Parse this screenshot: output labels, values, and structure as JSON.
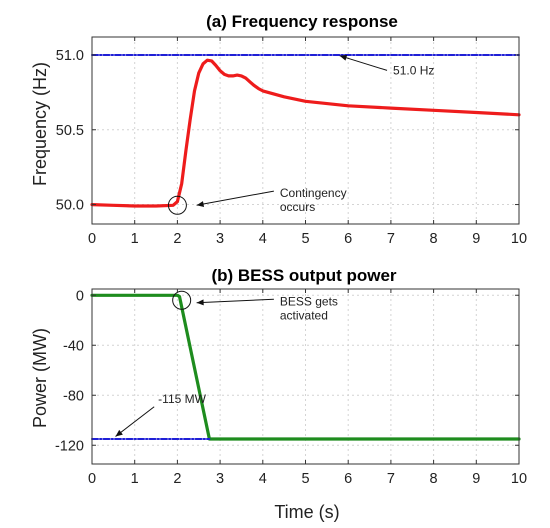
{
  "chart_data": [
    {
      "type": "line",
      "title": "(a) Frequency response",
      "xlabel": "",
      "ylabel": "Frequency (Hz)",
      "xlim": [
        0,
        10
      ],
      "ylim": [
        49.87,
        51.12
      ],
      "xticks": [
        0,
        1,
        2,
        3,
        4,
        5,
        6,
        7,
        8,
        9,
        10
      ],
      "yticks": [
        50.0,
        50.5,
        51.0
      ],
      "ytick_labels": [
        "50.0",
        "50.5",
        "51.0"
      ],
      "grid": true,
      "series": [
        {
          "name": "",
          "color": "#ee1c1c",
          "style": "solid",
          "x": [
            0,
            0.5,
            1.0,
            1.5,
            1.9,
            2.0,
            2.1,
            2.2,
            2.3,
            2.4,
            2.5,
            2.6,
            2.7,
            2.8,
            2.9,
            3.0,
            3.1,
            3.2,
            3.3,
            3.4,
            3.5,
            3.6,
            3.7,
            3.8,
            3.9,
            4.0,
            4.5,
            5.0,
            6.0,
            7.0,
            8.0,
            9.0,
            10.0
          ],
          "y": [
            50.0,
            49.995,
            49.99,
            49.99,
            49.995,
            50.02,
            50.14,
            50.36,
            50.57,
            50.76,
            50.88,
            50.94,
            50.965,
            50.96,
            50.93,
            50.895,
            50.87,
            50.86,
            50.86,
            50.865,
            50.86,
            50.845,
            50.82,
            50.795,
            50.775,
            50.76,
            50.72,
            50.69,
            50.66,
            50.645,
            50.63,
            50.615,
            50.6
          ]
        },
        {
          "name": "",
          "color": "#1f1fd6",
          "style": "dashed",
          "x": [
            0,
            10
          ],
          "y": [
            51.0,
            51.0
          ]
        }
      ],
      "annotations": [
        {
          "text": "51.0 Hz",
          "x": 7.05,
          "y": 50.87,
          "arrow_to": [
            5.8,
            50.995
          ]
        },
        {
          "text_lines": [
            "Contingency",
            "occurs"
          ],
          "x": 4.4,
          "y": 50.05,
          "arrow_to": [
            2.45,
            49.995
          ]
        }
      ],
      "circle_marker": {
        "x": 2.0,
        "y": 49.995
      }
    },
    {
      "type": "line",
      "title": "(b) BESS output power",
      "xlabel": "Time (s)",
      "ylabel": "Power (MW)",
      "xlim": [
        0,
        10
      ],
      "ylim": [
        -135,
        5
      ],
      "xticks": [
        0,
        1,
        2,
        3,
        4,
        5,
        6,
        7,
        8,
        9,
        10
      ],
      "yticks": [
        0,
        -40,
        -80,
        -120
      ],
      "ytick_labels": [
        "0",
        "-40",
        "-80",
        "-120"
      ],
      "grid": true,
      "series": [
        {
          "name": "",
          "color": "#1e8c1e",
          "style": "solid",
          "x": [
            0,
            2.0,
            2.05,
            2.75,
            10
          ],
          "y": [
            0,
            0,
            -1,
            -115,
            -115
          ]
        },
        {
          "name": "",
          "color": "#1f1fd6",
          "style": "dashed",
          "x": [
            0,
            2.75
          ],
          "y": [
            -115,
            -115
          ]
        }
      ],
      "annotations": [
        {
          "text": "-115 MW",
          "x": 1.55,
          "y": -86,
          "arrow_to": [
            0.55,
            -113
          ]
        },
        {
          "text_lines": [
            "BESS gets",
            "activated"
          ],
          "x": 4.4,
          "y": -8,
          "arrow_to": [
            2.45,
            -6
          ]
        }
      ],
      "circle_marker": {
        "x": 2.1,
        "y": -4
      }
    }
  ]
}
